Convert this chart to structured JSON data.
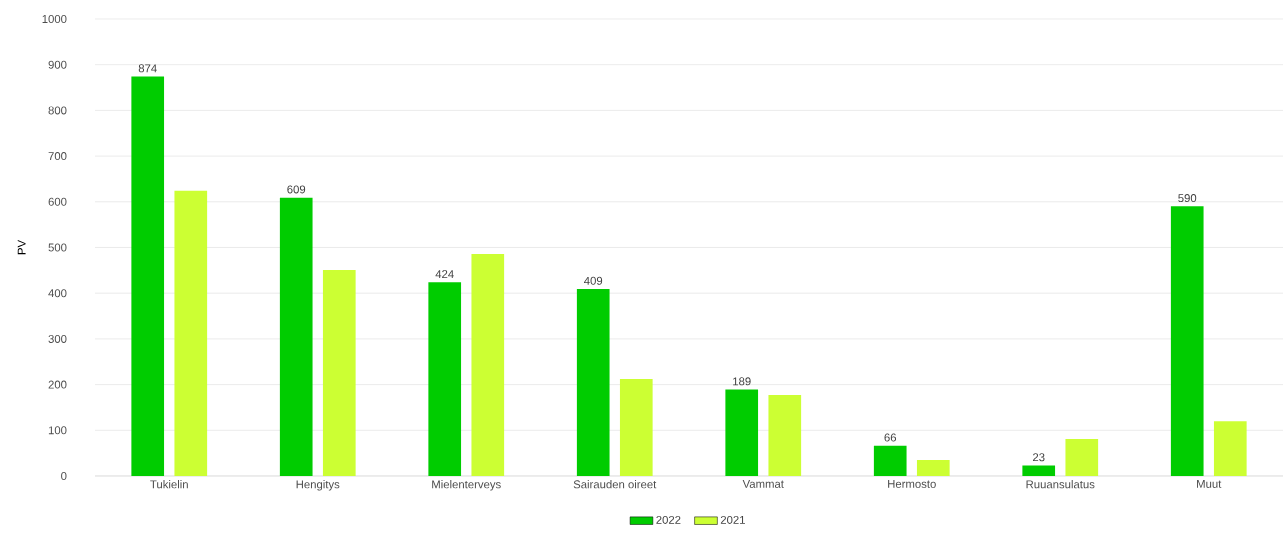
{
  "chart_data": {
    "type": "bar",
    "ylabel": "PV",
    "categories": [
      "Tukielin",
      "Hengitys",
      "Mielenterveys",
      "Sairauden oireet",
      "Vammat",
      "Hermosto",
      "Ruuansulatus",
      "Muut"
    ],
    "series": [
      {
        "name": "2022",
        "color": "#00cc00",
        "values": [
          874,
          609,
          424,
          409,
          189,
          66,
          23,
          590
        ],
        "value_labels": [
          "874",
          "609",
          "424",
          "409",
          "189",
          "66",
          "23",
          "590"
        ]
      },
      {
        "name": "2021",
        "color": "#ccff33",
        "values": [
          624,
          451,
          486,
          212,
          177,
          35,
          81,
          120
        ]
      }
    ],
    "ylim": [
      0,
      1000
    ],
    "yticks": [
      0,
      100,
      200,
      300,
      400,
      500,
      600,
      700,
      800,
      900,
      1000
    ],
    "grid": "y",
    "legend": "bottom"
  }
}
